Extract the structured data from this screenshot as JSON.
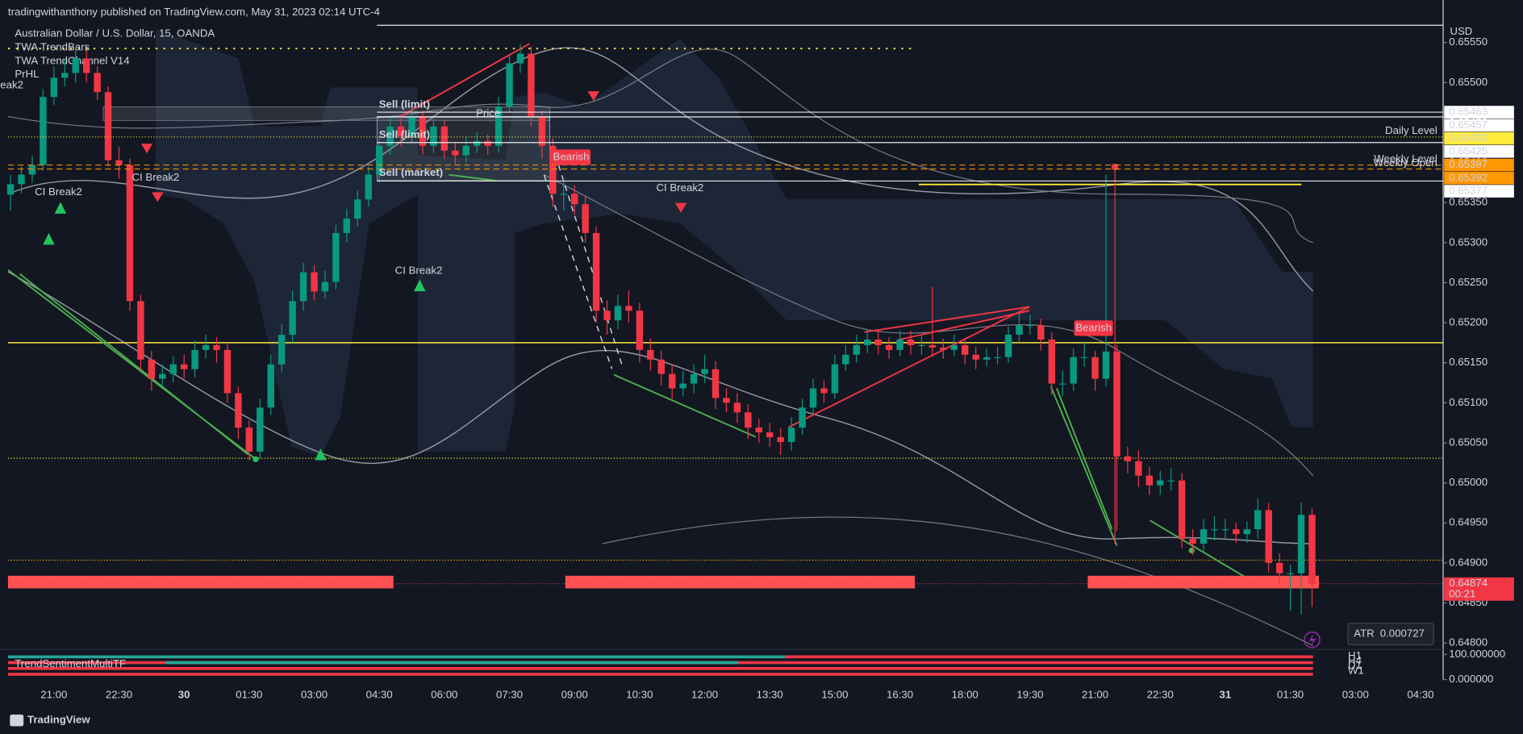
{
  "header": {
    "publisher": "tradingwithanthony published on TradingView.com, May 31, 2023 02:14 UTC-4",
    "symbol": "Australian Dollar / U.S. Dollar, 15, OANDA",
    "indicators": [
      "TWA TrendBars",
      "TWA TrendChannel V14",
      "PrHL"
    ],
    "currency": "USD"
  },
  "chart_data": {
    "type": "candlestick",
    "categories": [
      null,
      null,
      null,
      null,
      "21:00",
      null,
      null,
      null,
      null,
      null,
      "22:30",
      null,
      null,
      null,
      null,
      null,
      "30",
      null,
      null,
      null,
      null,
      null,
      "01:30",
      null,
      null,
      null,
      null,
      null,
      "03:00",
      null,
      null,
      null,
      null,
      null,
      "04:30",
      null,
      null,
      null,
      null,
      null,
      "06:00",
      null,
      null,
      null,
      null,
      null,
      "07:30",
      null,
      null,
      null,
      null,
      null,
      "09:00",
      null,
      null,
      null,
      null,
      null,
      "10:30",
      null,
      null,
      null,
      null,
      null,
      "12:00",
      null,
      null,
      null,
      null,
      null,
      "13:30",
      null,
      null,
      null,
      null,
      null,
      "15:00",
      null,
      null,
      null,
      null,
      null,
      "16:30",
      null,
      null,
      null,
      null,
      null,
      "18:00",
      null,
      null,
      null,
      null,
      null,
      "19:30",
      null,
      null,
      null,
      null,
      null,
      "21:00",
      null,
      null,
      null,
      null,
      null,
      "22:30",
      null,
      null,
      null,
      null,
      null,
      "31",
      null,
      null,
      null,
      null,
      null,
      "01:30",
      null,
      null
    ],
    "future_categories": [
      "03:00",
      "04:30"
    ],
    "candles": [
      [
        0.6536,
        0.65385,
        0.6534,
        0.65373
      ],
      [
        0.65373,
        0.65395,
        0.65362,
        0.65385
      ],
      [
        0.65385,
        0.65408,
        0.65375,
        0.65397
      ],
      [
        0.65397,
        0.65492,
        0.6539,
        0.65482
      ],
      [
        0.65482,
        0.6552,
        0.65472,
        0.65506
      ],
      [
        0.65506,
        0.6553,
        0.65495,
        0.65512
      ],
      [
        0.65512,
        0.65545,
        0.655,
        0.6553
      ],
      [
        0.6553,
        0.6554,
        0.655,
        0.65512
      ],
      [
        0.65512,
        0.6552,
        0.65478,
        0.65488
      ],
      [
        0.65488,
        0.65495,
        0.65395,
        0.65403
      ],
      [
        0.65403,
        0.6542,
        0.6538,
        0.65397
      ],
      [
        0.65397,
        0.65405,
        0.65215,
        0.65227
      ],
      [
        0.65227,
        0.65235,
        0.6514,
        0.65154
      ],
      [
        0.65154,
        0.65165,
        0.65115,
        0.6513
      ],
      [
        0.6513,
        0.65148,
        0.6512,
        0.65136
      ],
      [
        0.65136,
        0.65158,
        0.65125,
        0.65148
      ],
      [
        0.65148,
        0.6516,
        0.6513,
        0.65142
      ],
      [
        0.65142,
        0.65178,
        0.65132,
        0.65166
      ],
      [
        0.65166,
        0.65185,
        0.65155,
        0.65172
      ],
      [
        0.65172,
        0.65182,
        0.6515,
        0.65166
      ],
      [
        0.65166,
        0.65175,
        0.651,
        0.65112
      ],
      [
        0.65112,
        0.6512,
        0.65055,
        0.65069
      ],
      [
        0.65069,
        0.65078,
        0.65028,
        0.65039
      ],
      [
        0.65039,
        0.65105,
        0.6503,
        0.65094
      ],
      [
        0.65094,
        0.6516,
        0.65085,
        0.65148
      ],
      [
        0.65148,
        0.65198,
        0.65138,
        0.65185
      ],
      [
        0.65185,
        0.6524,
        0.65175,
        0.65227
      ],
      [
        0.65227,
        0.65275,
        0.65215,
        0.65263
      ],
      [
        0.65263,
        0.65272,
        0.65228,
        0.65239
      ],
      [
        0.65239,
        0.65265,
        0.6523,
        0.65251
      ],
      [
        0.65251,
        0.65322,
        0.65242,
        0.65312
      ],
      [
        0.65312,
        0.65342,
        0.653,
        0.6533
      ],
      [
        0.6533,
        0.65365,
        0.6532,
        0.65354
      ],
      [
        0.65354,
        0.65395,
        0.65345,
        0.65385
      ],
      [
        0.65385,
        0.65432,
        0.65375,
        0.65421
      ],
      [
        0.65421,
        0.65458,
        0.6541,
        0.65445
      ],
      [
        0.65445,
        0.65455,
        0.6542,
        0.65433
      ],
      [
        0.65433,
        0.6547,
        0.65425,
        0.65458
      ],
      [
        0.65458,
        0.65465,
        0.6541,
        0.65421
      ],
      [
        0.65421,
        0.65455,
        0.65412,
        0.65445
      ],
      [
        0.65445,
        0.65452,
        0.65405,
        0.65415
      ],
      [
        0.65415,
        0.65425,
        0.65398,
        0.65409
      ],
      [
        0.65409,
        0.65432,
        0.654,
        0.65421
      ],
      [
        0.65421,
        0.65438,
        0.65412,
        0.65427
      ],
      [
        0.65427,
        0.65435,
        0.6541,
        0.65421
      ],
      [
        0.65421,
        0.65482,
        0.65412,
        0.6547
      ],
      [
        0.6547,
        0.65535,
        0.65462,
        0.65524
      ],
      [
        0.65524,
        0.65548,
        0.65512,
        0.65536
      ],
      [
        0.65536,
        0.65545,
        0.65445,
        0.65458
      ],
      [
        0.65458,
        0.65465,
        0.65405,
        0.65421
      ],
      [
        0.65421,
        0.6543,
        0.65345,
        0.65361
      ],
      [
        0.65361,
        0.6538,
        0.6534,
        0.65361
      ],
      [
        0.65361,
        0.65372,
        0.65335,
        0.65348
      ],
      [
        0.65348,
        0.65358,
        0.653,
        0.65312
      ],
      [
        0.65312,
        0.6532,
        0.652,
        0.65215
      ],
      [
        0.65215,
        0.65228,
        0.65185,
        0.65203
      ],
      [
        0.65203,
        0.65235,
        0.65192,
        0.65221
      ],
      [
        0.65221,
        0.6524,
        0.652,
        0.65215
      ],
      [
        0.65215,
        0.65225,
        0.6515,
        0.65166
      ],
      [
        0.65166,
        0.6518,
        0.6514,
        0.65154
      ],
      [
        0.65154,
        0.65165,
        0.65122,
        0.65136
      ],
      [
        0.65136,
        0.65148,
        0.65105,
        0.65118
      ],
      [
        0.65118,
        0.6514,
        0.65108,
        0.65124
      ],
      [
        0.65124,
        0.65148,
        0.65112,
        0.65136
      ],
      [
        0.65136,
        0.6516,
        0.65125,
        0.65142
      ],
      [
        0.65142,
        0.65152,
        0.65092,
        0.65106
      ],
      [
        0.65106,
        0.65118,
        0.65088,
        0.651
      ],
      [
        0.651,
        0.65112,
        0.65075,
        0.65088
      ],
      [
        0.65088,
        0.65098,
        0.65055,
        0.65069
      ],
      [
        0.65069,
        0.6508,
        0.6505,
        0.65063
      ],
      [
        0.65063,
        0.65075,
        0.65045,
        0.65057
      ],
      [
        0.65057,
        0.65068,
        0.65035,
        0.65051
      ],
      [
        0.65051,
        0.65082,
        0.6504,
        0.65069
      ],
      [
        0.65069,
        0.65105,
        0.6506,
        0.65094
      ],
      [
        0.65094,
        0.6513,
        0.65085,
        0.65118
      ],
      [
        0.65118,
        0.65128,
        0.651,
        0.65112
      ],
      [
        0.65112,
        0.6516,
        0.65105,
        0.65148
      ],
      [
        0.65148,
        0.65172,
        0.6514,
        0.6516
      ],
      [
        0.6516,
        0.65185,
        0.6515,
        0.65172
      ],
      [
        0.65172,
        0.65192,
        0.65162,
        0.65179
      ],
      [
        0.65179,
        0.6519,
        0.6516,
        0.65172
      ],
      [
        0.65172,
        0.65182,
        0.65155,
        0.65166
      ],
      [
        0.65166,
        0.6519,
        0.65158,
        0.65179
      ],
      [
        0.65179,
        0.6519,
        0.6516,
        0.65172
      ],
      [
        0.65172,
        0.65185,
        0.6516,
        0.65172
      ],
      [
        0.65172,
        0.65245,
        0.65158,
        0.65169
      ],
      [
        0.65169,
        0.6518,
        0.65155,
        0.65166
      ],
      [
        0.65166,
        0.65185,
        0.65158,
        0.65172
      ],
      [
        0.65172,
        0.6518,
        0.65148,
        0.6516
      ],
      [
        0.6516,
        0.6517,
        0.65142,
        0.65154
      ],
      [
        0.65154,
        0.65168,
        0.65145,
        0.65157
      ],
      [
        0.65157,
        0.6517,
        0.65148,
        0.65157
      ],
      [
        0.65157,
        0.65195,
        0.6515,
        0.65185
      ],
      [
        0.65185,
        0.65212,
        0.65175,
        0.65197
      ],
      [
        0.65197,
        0.6521,
        0.65185,
        0.65197
      ],
      [
        0.65197,
        0.65205,
        0.65165,
        0.65179
      ],
      [
        0.65179,
        0.65188,
        0.6511,
        0.65124
      ],
      [
        0.65124,
        0.6514,
        0.65108,
        0.65124
      ],
      [
        0.65124,
        0.65168,
        0.65115,
        0.65157
      ],
      [
        0.65157,
        0.65175,
        0.65145,
        0.65157
      ],
      [
        0.65157,
        0.65165,
        0.65115,
        0.6513
      ],
      [
        0.6513,
        0.65385,
        0.6512,
        0.65164
      ],
      [
        0.65164,
        0.65172,
        0.6494,
        0.65033
      ],
      [
        0.65033,
        0.65045,
        0.65012,
        0.65027
      ],
      [
        0.65027,
        0.6504,
        0.64995,
        0.65009
      ],
      [
        0.65009,
        0.6502,
        0.64985,
        0.64997
      ],
      [
        0.64997,
        0.65015,
        0.64985,
        0.65003
      ],
      [
        0.65003,
        0.65018,
        0.6499,
        0.65003
      ],
      [
        0.65003,
        0.65012,
        0.64918,
        0.6493
      ],
      [
        0.6493,
        0.64942,
        0.6491,
        0.64924
      ],
      [
        0.64924,
        0.64955,
        0.64912,
        0.64942
      ],
      [
        0.64942,
        0.64958,
        0.64928,
        0.64942
      ],
      [
        0.64942,
        0.64955,
        0.6493,
        0.64942
      ],
      [
        0.64942,
        0.6495,
        0.64925,
        0.64936
      ],
      [
        0.64936,
        0.64952,
        0.64925,
        0.64942
      ],
      [
        0.64942,
        0.6498,
        0.6493,
        0.64966
      ],
      [
        0.64966,
        0.64975,
        0.64888,
        0.649
      ],
      [
        0.649,
        0.64912,
        0.64875,
        0.64887
      ],
      [
        0.64887,
        0.64898,
        0.6484,
        0.64887
      ],
      [
        0.64887,
        0.64975,
        0.64835,
        0.6496
      ],
      [
        0.6496,
        0.64968,
        0.64845,
        0.64874
      ]
    ],
    "up_color": "#089981",
    "down_color": "#f23645",
    "ylim": [
      0.64793,
      0.65574
    ],
    "yticks": [
      {
        "value": 0.648,
        "label": "0.64800"
      },
      {
        "value": 0.6485,
        "label": "0.64850"
      },
      {
        "value": 0.649,
        "label": "0.64900"
      },
      {
        "value": 0.6495,
        "label": "0.64950"
      },
      {
        "value": 0.65,
        "label": "0.65000"
      },
      {
        "value": 0.6505,
        "label": "0.65050"
      },
      {
        "value": 0.651,
        "label": "0.65100"
      },
      {
        "value": 0.6515,
        "label": "0.65150"
      },
      {
        "value": 0.652,
        "label": "0.65200"
      },
      {
        "value": 0.6525,
        "label": "0.65250"
      },
      {
        "value": 0.653,
        "label": "0.65300"
      },
      {
        "value": 0.6535,
        "label": "0.65350"
      },
      {
        "value": 0.654,
        "label": "0.65400"
      },
      {
        "value": 0.6545,
        "label": "0.65450"
      },
      {
        "value": 0.655,
        "label": "0.65500"
      },
      {
        "value": 0.6555,
        "label": "0.65550"
      }
    ],
    "grid": false,
    "levels": [
      {
        "value": 0.65463,
        "color": "#ffffff",
        "text_color": "#131722",
        "style": "solid"
      },
      {
        "value": 0.65457,
        "color": "#ffffff",
        "text_color": "#131722",
        "style": "solid"
      },
      {
        "value": 0.65432,
        "name": "Daily Level",
        "color": "#ffeb3b",
        "text_color": "#131722",
        "style": "dotted"
      },
      {
        "value": 0.65425,
        "color": "#ffffff",
        "text_color": "#131722",
        "style": "solid"
      },
      {
        "value": 0.65397,
        "name": "Weekly Level",
        "color": "#ff9800",
        "text_color": "#131722",
        "style": "dashed"
      },
      {
        "value": 0.65392,
        "name": "Weekly Open",
        "color": "#ff9800",
        "text_color": "#131722",
        "style": "dashed"
      },
      {
        "value": 0.65377,
        "color": "#ffffff",
        "text_color": "#131722",
        "style": "solid"
      },
      {
        "value": 0.64874,
        "color": "#f23645",
        "text_color": "#ffffff",
        "style": "dotted"
      }
    ],
    "last_time": "00:21",
    "annotations": [
      {
        "text": "Sell (limit)",
        "color": "#ffffff"
      },
      {
        "text": "Sell (limit)",
        "color": "#ffffff"
      },
      {
        "text": "Sell (market)",
        "color": "#ffffff"
      },
      {
        "text": "Price",
        "color": "#787b86"
      },
      {
        "text": "Bearish",
        "color": "#f23645"
      },
      {
        "text": "Bearish",
        "color": "#f23645"
      },
      {
        "text": "CI Break2",
        "color": "#22c55e"
      },
      {
        "text": "CI Break2",
        "color": "#22c55e"
      },
      {
        "text": "CI Break2",
        "color": "#f23645"
      },
      {
        "text": "CI Break2",
        "color": "#f23645"
      },
      {
        "text": "eak2",
        "color": "#f23645"
      }
    ]
  },
  "indicator_pane": {
    "name": "TrendSentimentMultiTF",
    "scale": [
      {
        "value": 100,
        "label": "100.000000"
      },
      {
        "value": 0,
        "label": "0.000000"
      }
    ],
    "timeframes": [
      "H1",
      "H4",
      "D1",
      "W1"
    ]
  },
  "atr": {
    "label": "ATR",
    "value": 0.000727
  },
  "footer": {
    "brand": "TradingView"
  }
}
